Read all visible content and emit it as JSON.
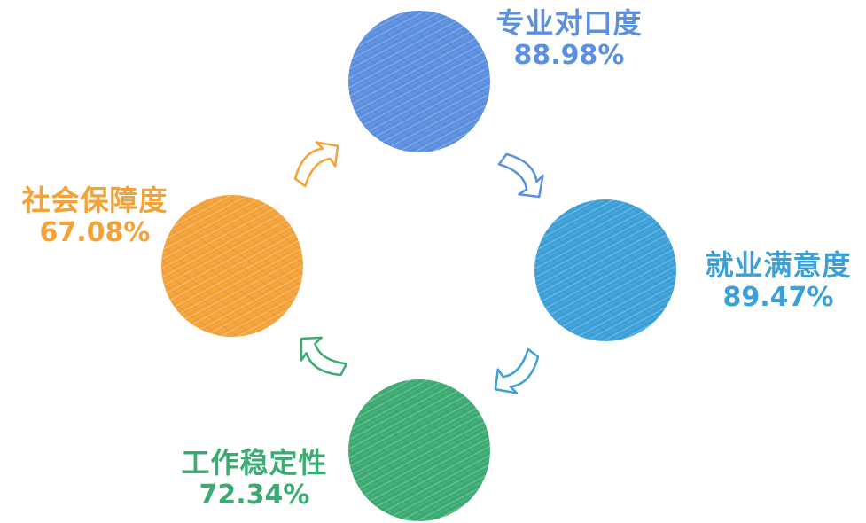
{
  "nodes": [
    {
      "id": "zy",
      "name": "专业对口度",
      "value": "88.98%",
      "color": "#5b8fdf"
    },
    {
      "id": "jy",
      "name": "就业满意度",
      "value": "89.47%",
      "color": "#3ca0d8"
    },
    {
      "id": "gz",
      "name": "工作稳定性",
      "value": "72.34%",
      "color": "#3bab72"
    },
    {
      "id": "sh",
      "name": "社会保障度",
      "value": "67.08%",
      "color": "#f4a238"
    }
  ],
  "arrow_colors": {
    "zy_to_jy": "#5b8fdf",
    "jy_to_gz": "#3ca0d8",
    "gz_to_sh": "#3bab72",
    "sh_to_zy": "#f4a238"
  },
  "flow": "clockwise"
}
